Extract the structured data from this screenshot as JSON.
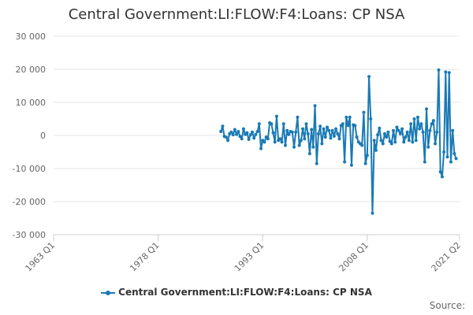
{
  "chart_data": {
    "type": "line",
    "title": "Central Government:LI:FLOW:F4:Loans: CP NSA",
    "xlabel": "",
    "ylabel": "",
    "ylim": [
      -30000,
      30000
    ],
    "y_ticks": [
      30000,
      20000,
      10000,
      0,
      -10000,
      -20000,
      -30000
    ],
    "y_tick_labels": [
      "30 000",
      "20 000",
      "10 000",
      "0",
      "-10 000",
      "-20 000",
      "-30 000"
    ],
    "x_ticks": [
      "1963 Q1",
      "1978 Q1",
      "1993 Q1",
      "2008 Q1",
      "2021 Q2"
    ],
    "x_tick_positions": [
      1963.0,
      1978.0,
      1993.0,
      2008.0,
      2021.25
    ],
    "xlim": [
      1963.0,
      2021.25
    ],
    "grid": "horizontal",
    "legend": "bottom-center",
    "series": [
      {
        "name": "Central Government:LI:FLOW:F4:Loans: CP NSA",
        "color": "#1a7ab5",
        "points": [
          [
            1987.0,
            1200
          ],
          [
            1987.25,
            2800
          ],
          [
            1987.5,
            -300
          ],
          [
            1987.75,
            -500
          ],
          [
            1988.0,
            -1500
          ],
          [
            1988.25,
            500
          ],
          [
            1988.5,
            1000
          ],
          [
            1988.75,
            200
          ],
          [
            1989.0,
            1800
          ],
          [
            1989.25,
            300
          ],
          [
            1989.5,
            1200
          ],
          [
            1989.75,
            -300
          ],
          [
            1990.0,
            -1000
          ],
          [
            1990.25,
            2000
          ],
          [
            1990.5,
            300
          ],
          [
            1990.75,
            800
          ],
          [
            1991.0,
            -1200
          ],
          [
            1991.25,
            200
          ],
          [
            1991.5,
            1000
          ],
          [
            1991.75,
            -800
          ],
          [
            1992.0,
            300
          ],
          [
            1992.25,
            1200
          ],
          [
            1992.5,
            3500
          ],
          [
            1992.75,
            -4000
          ],
          [
            1993.0,
            -1500
          ],
          [
            1993.25,
            -2000
          ],
          [
            1993.5,
            -500
          ],
          [
            1993.75,
            -1000
          ],
          [
            1994.0,
            3800
          ],
          [
            1994.25,
            3500
          ],
          [
            1994.5,
            800
          ],
          [
            1994.75,
            -2000
          ],
          [
            1995.0,
            5800
          ],
          [
            1995.25,
            -1500
          ],
          [
            1995.5,
            -1000
          ],
          [
            1995.75,
            -2000
          ],
          [
            1996.0,
            3500
          ],
          [
            1996.25,
            -3000
          ],
          [
            1996.5,
            1500
          ],
          [
            1996.75,
            300
          ],
          [
            1997.0,
            1200
          ],
          [
            1997.25,
            1000
          ],
          [
            1997.5,
            -3500
          ],
          [
            1997.75,
            1000
          ],
          [
            1998.0,
            5500
          ],
          [
            1998.25,
            -3000
          ],
          [
            1998.5,
            -1500
          ],
          [
            1998.75,
            2000
          ],
          [
            1999.0,
            -1000
          ],
          [
            1999.25,
            3500
          ],
          [
            1999.5,
            500
          ],
          [
            1999.75,
            -5500
          ],
          [
            2000.0,
            1800
          ],
          [
            2000.25,
            -3500
          ],
          [
            2000.5,
            9000
          ],
          [
            2000.75,
            -8500
          ],
          [
            2001.0,
            500
          ],
          [
            2001.25,
            2800
          ],
          [
            2001.5,
            -2500
          ],
          [
            2001.75,
            2000
          ],
          [
            2002.0,
            -500
          ],
          [
            2002.25,
            2500
          ],
          [
            2002.5,
            1500
          ],
          [
            2002.75,
            -800
          ],
          [
            2003.0,
            1500
          ],
          [
            2003.25,
            -200
          ],
          [
            2003.5,
            2000
          ],
          [
            2003.75,
            500
          ],
          [
            2004.0,
            -1000
          ],
          [
            2004.25,
            3000
          ],
          [
            2004.5,
            3500
          ],
          [
            2004.75,
            -8000
          ],
          [
            2005.0,
            5500
          ],
          [
            2005.25,
            3000
          ],
          [
            2005.5,
            5500
          ],
          [
            2005.75,
            -9000
          ],
          [
            2006.0,
            3200
          ],
          [
            2006.25,
            3000
          ],
          [
            2006.5,
            -500
          ],
          [
            2006.75,
            -2000
          ],
          [
            2007.0,
            -2500
          ],
          [
            2007.25,
            -3000
          ],
          [
            2007.5,
            7000
          ],
          [
            2007.75,
            -8500
          ],
          [
            2008.0,
            -6000
          ],
          [
            2008.25,
            17800
          ],
          [
            2008.5,
            5000
          ],
          [
            2008.75,
            -23500
          ],
          [
            2009.0,
            -1500
          ],
          [
            2009.25,
            -4500
          ],
          [
            2009.5,
            200
          ],
          [
            2009.75,
            2200
          ],
          [
            2010.0,
            -1500
          ],
          [
            2010.25,
            -2500
          ],
          [
            2010.5,
            500
          ],
          [
            2010.75,
            -500
          ],
          [
            2011.0,
            1000
          ],
          [
            2011.25,
            -1800
          ],
          [
            2011.5,
            -2500
          ],
          [
            2011.75,
            1500
          ],
          [
            2012.0,
            -2000
          ],
          [
            2012.25,
            2500
          ],
          [
            2012.5,
            1500
          ],
          [
            2012.75,
            500
          ],
          [
            2013.0,
            2000
          ],
          [
            2013.25,
            -2000
          ],
          [
            2013.5,
            -500
          ],
          [
            2013.75,
            1000
          ],
          [
            2014.0,
            -1500
          ],
          [
            2014.25,
            3500
          ],
          [
            2014.5,
            -2000
          ],
          [
            2014.75,
            5000
          ],
          [
            2015.0,
            -1500
          ],
          [
            2015.25,
            5500
          ],
          [
            2015.5,
            2000
          ],
          [
            2015.75,
            3500
          ],
          [
            2016.0,
            1000
          ],
          [
            2016.25,
            -8000
          ],
          [
            2016.5,
            8000
          ],
          [
            2016.75,
            -3500
          ],
          [
            2017.0,
            1500
          ],
          [
            2017.25,
            3500
          ],
          [
            2017.5,
            4500
          ],
          [
            2017.75,
            -2500
          ],
          [
            2018.0,
            1000
          ],
          [
            2018.25,
            19800
          ],
          [
            2018.5,
            -11000
          ],
          [
            2018.75,
            -12500
          ],
          [
            2019.0,
            -5000
          ],
          [
            2019.25,
            19200
          ],
          [
            2019.5,
            -6500
          ],
          [
            2019.75,
            19000
          ],
          [
            2020.0,
            -8000
          ],
          [
            2020.25,
            1500
          ],
          [
            2020.5,
            -5500
          ],
          [
            2020.75,
            -7000
          ]
        ]
      }
    ],
    "credits": "Source:"
  }
}
